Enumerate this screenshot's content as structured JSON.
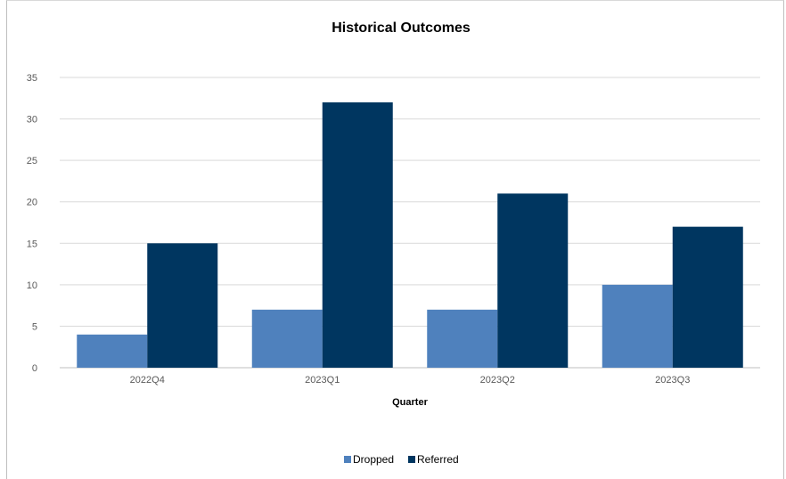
{
  "chart_data": {
    "type": "bar",
    "title": "Historical Outcomes",
    "xlabel": "Quarter",
    "ylabel": "",
    "categories": [
      "2022Q4",
      "2023Q1",
      "2023Q2",
      "2023Q3"
    ],
    "series": [
      {
        "name": "Dropped",
        "values": [
          4,
          7,
          7,
          10
        ],
        "color": "#4F81BD"
      },
      {
        "name": "Referred",
        "values": [
          15,
          32,
          21,
          17
        ],
        "color": "#003660"
      }
    ],
    "ylim": [
      0,
      35
    ],
    "yticks": [
      0,
      5,
      10,
      15,
      20,
      25,
      30,
      35
    ],
    "grid": true,
    "legend_position": "bottom"
  }
}
